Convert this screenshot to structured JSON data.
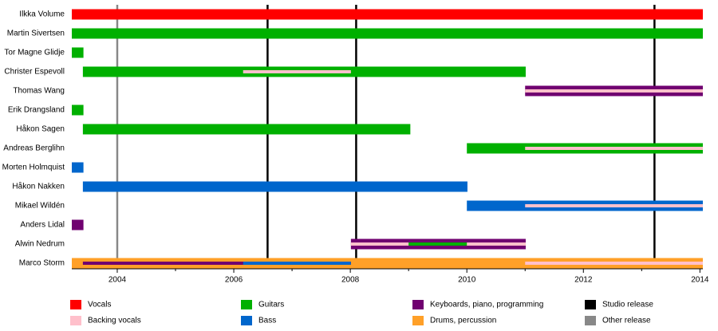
{
  "chart_data": {
    "type": "timeline",
    "xlim": [
      2003.22,
      2014.05
    ],
    "xticks": [
      2004,
      2006,
      2008,
      2010,
      2012,
      2014
    ],
    "xminorticks": [
      2005,
      2007,
      2009,
      2011,
      2013
    ],
    "roles": [
      {
        "name": "Vocals",
        "color": "#ff0000"
      },
      {
        "name": "Backing vocals",
        "color": "#ffc0cb"
      },
      {
        "name": "Guitars",
        "color": "#00b000"
      },
      {
        "name": "Bass",
        "color": "#0066cc"
      },
      {
        "name": "Keyboards, piano, programming",
        "color": "#700070"
      },
      {
        "name": "Drums, percussion",
        "color": "#ffa028"
      }
    ],
    "releases": [
      {
        "name": "Studio release",
        "color": "#000000",
        "dates": [
          2006.58,
          2008.1,
          2013.22
        ]
      },
      {
        "name": "Other release",
        "color": "#888888",
        "dates": [
          2004.0
        ]
      }
    ],
    "members": [
      {
        "name": "Ilkka Volume",
        "bars": [
          {
            "role": "Vocals",
            "start": 2003.22,
            "end": 2014.05
          }
        ]
      },
      {
        "name": "Martin Sivertsen",
        "bars": [
          {
            "role": "Guitars",
            "start": 2003.22,
            "end": 2014.05
          }
        ]
      },
      {
        "name": "Tor Magne Glidje",
        "bars": [
          {
            "role": "Guitars",
            "start": 2003.22,
            "end": 2003.42
          }
        ]
      },
      {
        "name": "Christer Espevoll",
        "bars": [
          {
            "role": "Guitars",
            "start": 2003.41,
            "end": 2011.01
          },
          {
            "role": "Backing vocals",
            "start": 2006.16,
            "end": 2008.01,
            "thin": true
          }
        ]
      },
      {
        "name": "Thomas Wang",
        "bars": [
          {
            "role": "Keyboards, piano, programming",
            "start": 2011.0,
            "end": 2014.05
          },
          {
            "role": "Backing vocals",
            "start": 2011.0,
            "end": 2014.05,
            "thin": true
          }
        ]
      },
      {
        "name": "Erik Drangsland",
        "bars": [
          {
            "role": "Guitars",
            "start": 2003.22,
            "end": 2003.42
          }
        ]
      },
      {
        "name": "Håkon Sagen",
        "bars": [
          {
            "role": "Guitars",
            "start": 2003.41,
            "end": 2009.03
          }
        ]
      },
      {
        "name": "Andreas Berglihn",
        "bars": [
          {
            "role": "Guitars",
            "start": 2010.0,
            "end": 2014.05
          },
          {
            "role": "Backing vocals",
            "start": 2011.0,
            "end": 2014.05,
            "thin": true
          }
        ]
      },
      {
        "name": "Morten Holmquist",
        "bars": [
          {
            "role": "Bass",
            "start": 2003.22,
            "end": 2003.42
          }
        ]
      },
      {
        "name": "Håkon Nakken",
        "bars": [
          {
            "role": "Bass",
            "start": 2003.41,
            "end": 2010.01
          }
        ]
      },
      {
        "name": "Mikael Wildén",
        "bars": [
          {
            "role": "Bass",
            "start": 2010.0,
            "end": 2014.05
          },
          {
            "role": "Backing vocals",
            "start": 2011.0,
            "end": 2014.05,
            "thin": true
          }
        ]
      },
      {
        "name": "Anders Lidal",
        "bars": [
          {
            "role": "Keyboards, piano, programming",
            "start": 2003.22,
            "end": 2003.42
          }
        ]
      },
      {
        "name": "Alwin Nedrum",
        "bars": [
          {
            "role": "Keyboards, piano, programming",
            "start": 2008.01,
            "end": 2011.01
          },
          {
            "role": "Backing vocals",
            "start": 2008.01,
            "end": 2011.01,
            "thin": true
          },
          {
            "role": "Guitars",
            "start": 2009.0,
            "end": 2010.0,
            "thin": true
          }
        ]
      },
      {
        "name": "Marco Storm",
        "bars": [
          {
            "role": "Drums, percussion",
            "start": 2003.22,
            "end": 2011.01
          },
          {
            "role": "Drums, percussion",
            "start": 2011.0,
            "end": 2014.05
          },
          {
            "role": "Keyboards, piano, programming",
            "start": 2003.41,
            "end": 2008.01,
            "thin": true
          },
          {
            "role": "Bass",
            "start": 2006.16,
            "end": 2008.01,
            "thin": true
          },
          {
            "role": "Backing vocals",
            "start": 2011.0,
            "end": 2014.05,
            "thin": true
          }
        ]
      }
    ]
  }
}
